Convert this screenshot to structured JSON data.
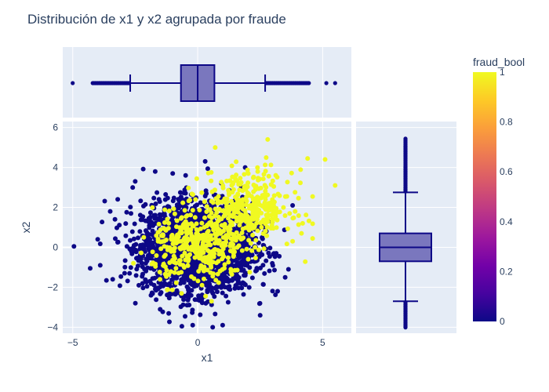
{
  "chart_data": {
    "type": "scatter",
    "title": "Distribución de x1 y x2 agrupada por fraude",
    "xlabel": "x1",
    "ylabel": "x2",
    "xlim": [
      -5.4,
      9.4
    ],
    "ylim": [
      -4.3,
      6.3
    ],
    "x_ticks": [
      -5,
      0,
      5
    ],
    "y_ticks": [
      -4,
      -2,
      0,
      2,
      4,
      6
    ],
    "x_tick_labels": [
      "−5",
      "0",
      "5"
    ],
    "y_tick_labels": [
      "−4",
      "−2",
      "0",
      "2",
      "4",
      "6"
    ],
    "colorbar": {
      "title": "fraud_bool",
      "range": [
        0,
        1
      ],
      "ticks": [
        0,
        0.2,
        0.4,
        0.6,
        0.8,
        1
      ],
      "tick_labels": [
        "0",
        "0.2",
        "0.4",
        "0.6",
        "0.8",
        "1"
      ],
      "colors": [
        "#0d0887",
        "#46039f",
        "#7201a8",
        "#9c179e",
        "#bd3786",
        "#d8576b",
        "#ed7953",
        "#fb9f3a",
        "#fdca26",
        "#f0f921"
      ]
    },
    "series": [
      {
        "fraud_bool": 0,
        "color": "#0d0887",
        "cloud": {
          "center": [
            0,
            0
          ],
          "sd": [
            1.1,
            1.1
          ],
          "count": 2600
        },
        "outliers": [
          [
            -4.95,
            0.05
          ],
          [
            -4.3,
            -1.05
          ],
          [
            -3.9,
            -0.9
          ],
          [
            -4.0,
            0.4
          ],
          [
            -3.5,
            1.8
          ],
          [
            -3.2,
            2.4
          ],
          [
            -2.6,
            3.0
          ],
          [
            -2.5,
            3.3
          ],
          [
            -1.7,
            3.8
          ],
          [
            -1.0,
            3.7
          ],
          [
            -0.2,
            -3.9
          ],
          [
            0.6,
            -4.0
          ],
          [
            1.0,
            -3.9
          ],
          [
            -3.4,
            -1.6
          ],
          [
            2.5,
            -3.4
          ],
          [
            3.2,
            -2.2
          ],
          [
            3.5,
            -1.5
          ],
          [
            1.9,
            4.0
          ],
          [
            0.3,
            4.3
          ],
          [
            3.8,
            2.1
          ]
        ]
      },
      {
        "fraud_bool": 1,
        "color": "#f0f921",
        "cloud_a": {
          "center": [
            0,
            0
          ],
          "sd": [
            0.9,
            0.9
          ],
          "count": 380
        },
        "cloud_b": {
          "center": [
            2.0,
            2.0
          ],
          "sd": [
            0.9,
            0.9
          ],
          "count": 380
        },
        "outliers": [
          [
            5.5,
            3.1
          ],
          [
            5.1,
            4.4
          ],
          [
            4.4,
            4.45
          ],
          [
            2.8,
            5.4
          ],
          [
            0.7,
            5.0
          ],
          [
            3.9,
            1.8
          ],
          [
            4.2,
            1.2
          ],
          [
            3.8,
            0.3
          ]
        ]
      }
    ],
    "marginal_x_box": {
      "q1": -0.67,
      "median": 0.0,
      "q3": 0.67,
      "whisker_low": -2.7,
      "whisker_high": 2.7,
      "min": -5.0,
      "max": 5.5
    },
    "marginal_y_box": {
      "q1": -0.7,
      "median": 0.0,
      "q3": 0.7,
      "whisker_low": -2.7,
      "whisker_high": 2.75,
      "min": -4.05,
      "max": 5.45
    },
    "box_color": "#0d0887",
    "box_fill": "#7a77be",
    "grid": true
  }
}
